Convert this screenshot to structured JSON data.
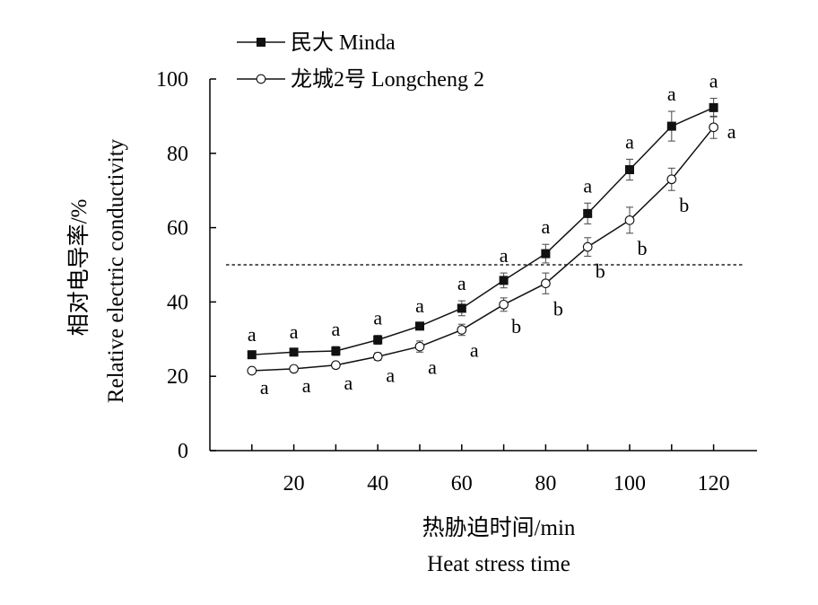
{
  "chart_data": {
    "type": "line",
    "xlabel_cn": "热胁迫时间/min",
    "xlabel_en": "Heat stress time",
    "ylabel_cn": "相对电导率/%",
    "ylabel_en": "Relative electric conductivity",
    "xlim": [
      0,
      130
    ],
    "ylim": [
      0,
      100
    ],
    "x_ticks": [
      20,
      40,
      60,
      80,
      100,
      120
    ],
    "y_ticks": [
      0,
      20,
      40,
      60,
      80,
      100
    ],
    "x": [
      10,
      20,
      30,
      40,
      50,
      60,
      70,
      80,
      90,
      100,
      110,
      120
    ],
    "reference_line_y": 50,
    "legend_position": "top-left",
    "grid": false,
    "series": [
      {
        "name": "民大  Minda",
        "marker": "filled-square",
        "color": "#111111",
        "values": [
          25.8,
          26.5,
          26.8,
          29.8,
          33.5,
          38.3,
          45.8,
          53.0,
          63.8,
          75.6,
          87.3,
          92.3
        ],
        "errors": [
          0.8,
          0.8,
          1.2,
          1.2,
          0.8,
          2.0,
          2.0,
          2.5,
          2.8,
          2.8,
          4.0,
          2.5
        ],
        "significance": [
          "a",
          "a",
          "a",
          "a",
          "a",
          "a",
          "a",
          "a",
          "a",
          "a",
          "a",
          "a"
        ]
      },
      {
        "name": "龙城2号 Longcheng 2",
        "marker": "open-circle",
        "color": "#111111",
        "values": [
          21.5,
          22.0,
          23.0,
          25.3,
          28.0,
          32.5,
          39.3,
          45.0,
          54.8,
          62.0,
          73.0,
          87.0
        ],
        "errors": [
          0.5,
          0.5,
          0.8,
          1.0,
          1.5,
          1.5,
          1.8,
          2.8,
          2.5,
          3.5,
          3.0,
          3.0
        ],
        "significance": [
          "a",
          "a",
          "a",
          "a",
          "a",
          "a",
          "b",
          "b",
          "b",
          "b",
          "b",
          "a"
        ]
      }
    ]
  }
}
